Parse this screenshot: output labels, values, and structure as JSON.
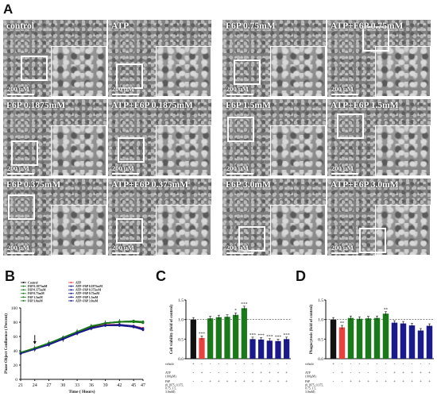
{
  "panel_A": {
    "letter": "A",
    "images": [
      {
        "label": "control",
        "scale": "200 μM"
      },
      {
        "label": "ATP",
        "scale": "200 μM"
      },
      {
        "label": "F6P 0.75mM",
        "scale": "200 μM"
      },
      {
        "label": "ATP+F6P 0.75mM",
        "scale": "200 μM"
      },
      {
        "label": "F6P 0.1875mM",
        "scale": "200 μM"
      },
      {
        "label": "ATP+F6P 0.1875mM",
        "scale": "200 μM"
      },
      {
        "label": "F6P 1.5mM",
        "scale": "200 μM"
      },
      {
        "label": "ATP+F6P 1.5mM",
        "scale": "200 μM"
      },
      {
        "label": "F6P 0.375mM",
        "scale": "200 μM"
      },
      {
        "label": "ATP+F6P 0.375mM",
        "scale": "200 μM"
      },
      {
        "label": "F6P 3.0mM",
        "scale": "200 μM"
      },
      {
        "label": "ATP+F6P 3.0mM",
        "scale": "200 μM"
      }
    ]
  },
  "panel_B": {
    "letter": "B"
  },
  "panel_C": {
    "letter": "C"
  },
  "panel_D": {
    "letter": "D"
  },
  "colors": {
    "control": "#111111",
    "atp": "#e8423f",
    "f6p": "#1a7a1a",
    "atp_f6p": "#1a1a8c"
  },
  "chart_data": [
    {
      "type": "line",
      "xlabel": "Time ( Hours)",
      "ylabel": "Phase Object Confluence ( Percent)",
      "x": [
        21,
        24,
        27,
        30,
        33,
        36,
        39,
        42,
        45,
        47
      ],
      "xticks": [
        "21",
        "24",
        "27",
        "30",
        "33",
        "36",
        "39",
        "42",
        "45",
        "47"
      ],
      "yticks": [
        "0",
        "20",
        "40",
        "60",
        "80",
        "100"
      ],
      "ylim": [
        0,
        100
      ],
      "arrow_at": 24,
      "legend": [
        [
          "Control",
          "ATP"
        ],
        [
          "F6P 0.1875mM",
          "ATP+F6P 0.1875mM"
        ],
        [
          "F6P 0.375mM",
          "ATP+F6P 0.375mM"
        ],
        [
          "F6P 0.75mM",
          "ATP+F6P 0.75mM"
        ],
        [
          "F6P 1.5mM",
          "ATP+F6P 1.5mM"
        ],
        [
          "F6P 3.0mM",
          "ATP+F6P 3.0mM"
        ]
      ],
      "series": [
        {
          "name": "Control",
          "group": "control",
          "values": [
            37,
            43,
            50,
            57,
            66,
            73,
            78,
            80,
            81,
            79
          ]
        },
        {
          "name": "ATP",
          "group": "atp",
          "values": [
            36,
            42,
            49,
            56,
            65,
            72,
            77,
            77,
            75,
            72
          ]
        },
        {
          "name": "F6P 0.1875mM",
          "group": "f6p",
          "values": [
            37,
            44,
            51,
            58,
            67,
            74,
            79,
            81,
            82,
            80
          ]
        },
        {
          "name": "F6P 0.375mM",
          "group": "f6p",
          "values": [
            38,
            44,
            51,
            58,
            67,
            74,
            79,
            81,
            82,
            81
          ]
        },
        {
          "name": "F6P 0.75mM",
          "group": "f6p",
          "values": [
            37,
            43,
            50,
            58,
            66,
            74,
            79,
            80,
            81,
            80
          ]
        },
        {
          "name": "F6P 1.5mM",
          "group": "f6p",
          "values": [
            38,
            44,
            51,
            59,
            67,
            75,
            79,
            81,
            81,
            80
          ]
        },
        {
          "name": "F6P 3.0mM",
          "group": "f6p",
          "values": [
            37,
            43,
            50,
            58,
            66,
            74,
            78,
            80,
            80,
            79
          ]
        },
        {
          "name": "ATP+F6P 0.1875mM",
          "group": "atp_f6p",
          "values": [
            36,
            42,
            49,
            56,
            65,
            72,
            76,
            76,
            74,
            70
          ]
        },
        {
          "name": "ATP+F6P 0.375mM",
          "group": "atp_f6p",
          "values": [
            36,
            42,
            49,
            57,
            65,
            72,
            76,
            77,
            75,
            71
          ]
        },
        {
          "name": "ATP+F6P 0.75mM",
          "group": "atp_f6p",
          "values": [
            36,
            42,
            49,
            56,
            64,
            71,
            76,
            76,
            74,
            71
          ]
        },
        {
          "name": "ATP+F6P 1.5mM",
          "group": "atp_f6p",
          "values": [
            36,
            42,
            49,
            56,
            65,
            72,
            76,
            76,
            73,
            70
          ]
        },
        {
          "name": "ATP+F6P 3.0mM",
          "group": "atp_f6p",
          "values": [
            36,
            42,
            48,
            56,
            64,
            71,
            75,
            75,
            73,
            69
          ]
        }
      ]
    },
    {
      "type": "bar",
      "ylabel": "Cell viability (fold of control)",
      "ylim": [
        0,
        1.5
      ],
      "yticks": [
        "0.0",
        "0.5",
        "1.0",
        "1.5"
      ],
      "reference_line": 1.0,
      "values": [
        1.0,
        0.53,
        1.03,
        1.06,
        1.07,
        1.12,
        1.29,
        0.5,
        0.49,
        0.46,
        0.45,
        0.5
      ],
      "groups": [
        "control",
        "atp",
        "f6p",
        "f6p",
        "f6p",
        "f6p",
        "f6p",
        "atp_f6p",
        "atp_f6p",
        "atp_f6p",
        "atp_f6p",
        "atp_f6p"
      ],
      "stars": [
        "",
        "***",
        "",
        "",
        "",
        "*",
        "***",
        "***",
        "***",
        "***",
        "***",
        "***"
      ],
      "row_labels": [
        "vehicle",
        "ATP\n(100μM)",
        "F6P\n(0.1875, 0.375,\n0.75, 1.5,\n3.0mM)"
      ],
      "rows": [
        [
          "+",
          "-",
          "-",
          "-",
          "-",
          "-",
          "-",
          "-",
          "-",
          "-",
          "-",
          "-"
        ],
        [
          "-",
          "+",
          "-",
          "-",
          "-",
          "-",
          "-",
          "+",
          "+",
          "+",
          "+",
          "+"
        ],
        [
          "-",
          "-",
          "+",
          "+",
          "+",
          "+",
          "+",
          "+",
          "+",
          "+",
          "+",
          "+"
        ]
      ]
    },
    {
      "type": "bar",
      "ylabel": "Phagocytosis (fold of control)",
      "ylim": [
        0,
        1.5
      ],
      "yticks": [
        "0.0",
        "0.5",
        "1.0",
        "1.5"
      ],
      "reference_line": 1.0,
      "values": [
        1.0,
        0.8,
        1.04,
        1.02,
        1.03,
        1.04,
        1.15,
        0.92,
        0.9,
        0.85,
        0.72,
        0.84
      ],
      "groups": [
        "control",
        "atp",
        "f6p",
        "f6p",
        "f6p",
        "f6p",
        "f6p",
        "atp_f6p",
        "atp_f6p",
        "atp_f6p",
        "atp_f6p",
        "atp_f6p"
      ],
      "stars": [
        "",
        "**",
        "",
        "",
        "",
        "",
        "**",
        "",
        "",
        "",
        "",
        ""
      ],
      "row_labels": [
        "vehicle",
        "ATP\n(100μM)",
        "F6P\n(0.1875, 0.375,\n0.75, 1.5,\n3.0mM)"
      ],
      "rows": [
        [
          "+",
          "-",
          "-",
          "-",
          "-",
          "-",
          "-",
          "-",
          "-",
          "-",
          "-",
          "-"
        ],
        [
          "-",
          "+",
          "-",
          "-",
          "-",
          "-",
          "-",
          "+",
          "+",
          "+",
          "+",
          "+"
        ],
        [
          "-",
          "-",
          "+",
          "+",
          "+",
          "+",
          "+",
          "+",
          "+",
          "+",
          "+",
          "+"
        ]
      ]
    }
  ]
}
